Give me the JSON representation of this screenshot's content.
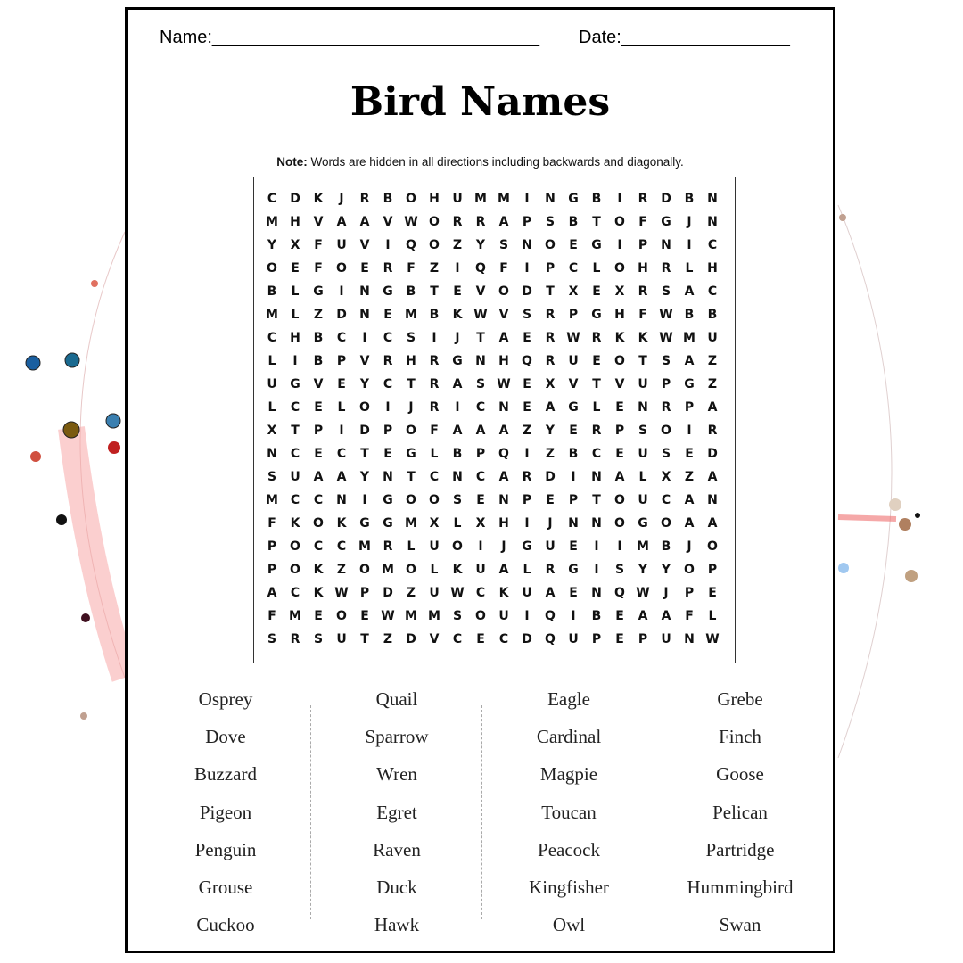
{
  "header": {
    "name_label": "Name:_________________________________",
    "date_label": "Date:_________________"
  },
  "title": "Bird Names",
  "note": {
    "bold": "Note:",
    "text": " Words are hidden in all directions including backwards and diagonally."
  },
  "grid": [
    "CDKJRBOHUMMINGBIRDBN",
    "MHVAAVWORRAPSBTOFGJN",
    "YXFUVIQOZYSNOEGIPNIC",
    "OEFOERFZIQFIPCLOHRLH",
    "BLGINGBTEVODTXEXRSAC",
    "MLZDNEMBKWVSRPGHFWBB",
    "CHBCICSIJTAERWRKKWMU",
    "LIBPVRHRGNHQRUEOTSAZ",
    "UGVEYCTRASWEXVTVUPGZ",
    "LCELOIJRICNEAGLENRPA",
    "XTPIDPOFAAAZYERPSOIR",
    "NCECTEGLBPQIZBCEUSED",
    "SUAAYNTCNCARDINALXZA",
    "MCCNIGOOSENPEPTOUCAN",
    "FKOKGGMXLXHIJNNOGOAA",
    "POCCMRLUOIJGUEIIMBJO",
    "POKZOMOLKUALRGISYYOP",
    "ACKWPDZUWCKUAENQWJPE",
    "FMEOEWMMSOUIQIBEAAFL",
    "SRSUTZDVCECDQUPEPUNW"
  ],
  "word_columns": [
    [
      "Osprey",
      "Dove",
      "Buzzard",
      "Pigeon",
      "Penguin",
      "Grouse",
      "Cuckoo"
    ],
    [
      "Quail",
      "Sparrow",
      "Wren",
      "Egret",
      "Raven",
      "Duck",
      "Hawk"
    ],
    [
      "Eagle",
      "Cardinal",
      "Magpie",
      "Toucan",
      "Peacock",
      "Kingfisher",
      "Owl"
    ],
    [
      "Grebe",
      "Finch",
      "Goose",
      "Pelican",
      "Partridge",
      "Hummingbird",
      "Swan"
    ]
  ]
}
